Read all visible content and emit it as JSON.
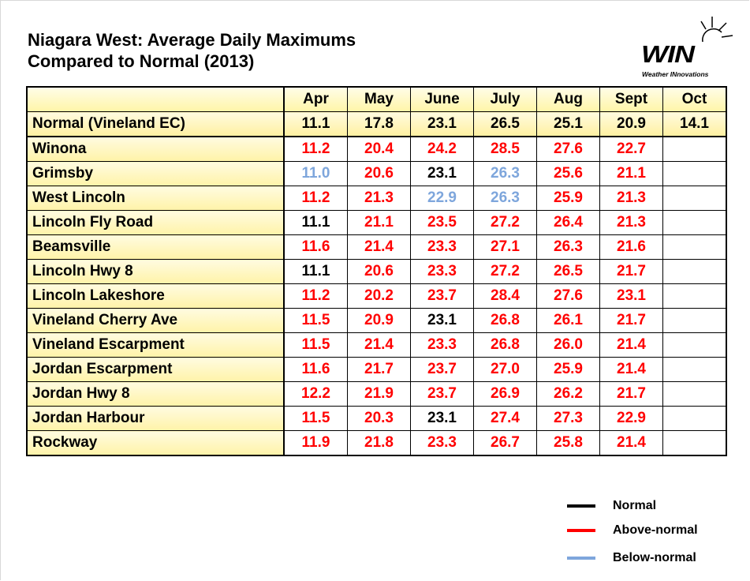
{
  "title": [
    "Niagara West: Average Daily Maximums",
    "Compared to Normal (2013)"
  ],
  "logo": {
    "name": "WIN",
    "tagline": "Weather INnovations"
  },
  "table": {
    "columns": [
      "Apr",
      "May",
      "June",
      "July",
      "Aug",
      "Sept",
      "Oct"
    ],
    "normal": {
      "label": "Normal (Vineland EC)",
      "values": [
        "11.1",
        "17.8",
        "23.1",
        "26.5",
        "25.1",
        "20.9",
        "14.1"
      ]
    },
    "rows": [
      {
        "label": "Winona",
        "values": [
          "11.2",
          "20.4",
          "24.2",
          "28.5",
          "27.6",
          "22.7"
        ]
      },
      {
        "label": "Grimsby",
        "values": [
          "11.0",
          "20.6",
          "23.1",
          "26.3",
          "25.6",
          "21.1"
        ]
      },
      {
        "label": "West Lincoln",
        "values": [
          "11.2",
          "21.3",
          "22.9",
          "26.3",
          "25.9",
          "21.3"
        ]
      },
      {
        "label": "Lincoln Fly Road",
        "values": [
          "11.1",
          "21.1",
          "23.5",
          "27.2",
          "26.4",
          "21.3"
        ]
      },
      {
        "label": "Beamsville",
        "values": [
          "11.6",
          "21.4",
          "23.3",
          "27.1",
          "26.3",
          "21.6"
        ]
      },
      {
        "label": "Lincoln Hwy 8",
        "values": [
          "11.1",
          "20.6",
          "23.3",
          "27.2",
          "26.5",
          "21.7"
        ]
      },
      {
        "label": "Lincoln Lakeshore",
        "values": [
          "11.2",
          "20.2",
          "23.7",
          "28.4",
          "27.6",
          "23.1"
        ]
      },
      {
        "label": "Vineland Cherry Ave",
        "values": [
          "11.5",
          "20.9",
          "23.1",
          "26.8",
          "26.1",
          "21.7"
        ]
      },
      {
        "label": "Vineland Escarpment",
        "values": [
          "11.5",
          "21.4",
          "23.3",
          "26.8",
          "26.0",
          "21.4"
        ]
      },
      {
        "label": "Jordan Escarpment",
        "values": [
          "11.6",
          "21.7",
          "23.7",
          "27.0",
          "25.9",
          "21.4"
        ]
      },
      {
        "label": "Jordan Hwy 8",
        "values": [
          "12.2",
          "21.9",
          "23.7",
          "26.9",
          "26.2",
          "21.7"
        ]
      },
      {
        "label": "Jordan Harbour",
        "values": [
          "11.5",
          "20.3",
          "23.1",
          "27.4",
          "27.3",
          "22.9"
        ]
      },
      {
        "label": "Rockway",
        "values": [
          "11.9",
          "21.8",
          "23.3",
          "26.7",
          "25.8",
          "21.4"
        ]
      }
    ]
  },
  "legend": [
    {
      "label": "Normal",
      "color": "#000000"
    },
    {
      "label": "Above-normal",
      "color": "#ff0000"
    },
    {
      "label": "Below-normal",
      "color": "#7ea6dc"
    }
  ]
}
